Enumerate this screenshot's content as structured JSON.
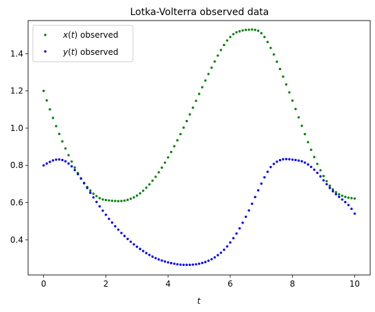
{
  "chart_data": {
    "type": "scatter",
    "title": "Lotka-Volterra observed data",
    "xlabel": "t",
    "ylabel": "",
    "xlim": [
      -0.5,
      10.5
    ],
    "ylim": [
      0.2115,
      1.578
    ],
    "xticks": [
      "0",
      "2",
      "4",
      "6",
      "8",
      "10"
    ],
    "yticks": [
      "0.4",
      "0.6",
      "0.8",
      "1.0",
      "1.2",
      "1.4"
    ],
    "grid": false,
    "legend_position": "upper-left",
    "series": [
      {
        "name": "x(t) observed",
        "name_math": "x",
        "name_arg": "t",
        "name_suffix": " observed",
        "color": "#008000",
        "points": [
          [
            0.0,
            1.2
          ],
          [
            0.1,
            1.149
          ],
          [
            0.2,
            1.101
          ],
          [
            0.3,
            1.055
          ],
          [
            0.4,
            1.011
          ],
          [
            0.5,
            0.969
          ],
          [
            0.6,
            0.929
          ],
          [
            0.7,
            0.891
          ],
          [
            0.8,
            0.855
          ],
          [
            0.9,
            0.821
          ],
          [
            1.0,
            0.789
          ],
          [
            1.1,
            0.759
          ],
          [
            1.2,
            0.731
          ],
          [
            1.3,
            0.706
          ],
          [
            1.4,
            0.684
          ],
          [
            1.5,
            0.665
          ],
          [
            1.6,
            0.648
          ],
          [
            1.7,
            0.635
          ],
          [
            1.8,
            0.624
          ],
          [
            1.9,
            0.617
          ],
          [
            2.0,
            0.614
          ],
          [
            2.1,
            0.612
          ],
          [
            2.2,
            0.61
          ],
          [
            2.3,
            0.609
          ],
          [
            2.4,
            0.608
          ],
          [
            2.5,
            0.609
          ],
          [
            2.6,
            0.611
          ],
          [
            2.7,
            0.615
          ],
          [
            2.8,
            0.621
          ],
          [
            2.9,
            0.628
          ],
          [
            3.0,
            0.638
          ],
          [
            3.1,
            0.65
          ],
          [
            3.2,
            0.664
          ],
          [
            3.3,
            0.68
          ],
          [
            3.4,
            0.698
          ],
          [
            3.5,
            0.718
          ],
          [
            3.6,
            0.739
          ],
          [
            3.7,
            0.763
          ],
          [
            3.8,
            0.788
          ],
          [
            3.9,
            0.815
          ],
          [
            4.0,
            0.843
          ],
          [
            4.1,
            0.872
          ],
          [
            4.2,
            0.903
          ],
          [
            4.3,
            0.935
          ],
          [
            4.4,
            0.968
          ],
          [
            4.5,
            1.003
          ],
          [
            4.6,
            1.038
          ],
          [
            4.7,
            1.074
          ],
          [
            4.8,
            1.11
          ],
          [
            4.9,
            1.147
          ],
          [
            5.0,
            1.184
          ],
          [
            5.1,
            1.22
          ],
          [
            5.2,
            1.256
          ],
          [
            5.3,
            1.291
          ],
          [
            5.4,
            1.325
          ],
          [
            5.5,
            1.358
          ],
          [
            5.6,
            1.39
          ],
          [
            5.7,
            1.42
          ],
          [
            5.8,
            1.447
          ],
          [
            5.9,
            1.471
          ],
          [
            6.0,
            1.49
          ],
          [
            6.1,
            1.505
          ],
          [
            6.2,
            1.515
          ],
          [
            6.3,
            1.52
          ],
          [
            6.4,
            1.525
          ],
          [
            6.5,
            1.528
          ],
          [
            6.6,
            1.529
          ],
          [
            6.7,
            1.53
          ],
          [
            6.8,
            1.528
          ],
          [
            6.9,
            1.523
          ],
          [
            7.0,
            1.51
          ],
          [
            7.1,
            1.49
          ],
          [
            7.2,
            1.463
          ],
          [
            7.3,
            1.431
          ],
          [
            7.4,
            1.396
          ],
          [
            7.5,
            1.357
          ],
          [
            7.6,
            1.318
          ],
          [
            7.7,
            1.277
          ],
          [
            7.8,
            1.235
          ],
          [
            7.9,
            1.192
          ],
          [
            8.0,
            1.148
          ],
          [
            8.1,
            1.103
          ],
          [
            8.2,
            1.058
          ],
          [
            8.3,
            1.013
          ],
          [
            8.4,
            0.968
          ],
          [
            8.5,
            0.925
          ],
          [
            8.6,
            0.884
          ],
          [
            8.7,
            0.845
          ],
          [
            8.8,
            0.808
          ],
          [
            8.9,
            0.774
          ],
          [
            9.0,
            0.743
          ],
          [
            9.1,
            0.715
          ],
          [
            9.2,
            0.691
          ],
          [
            9.3,
            0.671
          ],
          [
            9.4,
            0.656
          ],
          [
            9.5,
            0.645
          ],
          [
            9.6,
            0.637
          ],
          [
            9.7,
            0.631
          ],
          [
            9.8,
            0.627
          ],
          [
            9.9,
            0.624
          ],
          [
            10.0,
            0.622
          ]
        ]
      },
      {
        "name": "y(t) observed",
        "name_math": "y",
        "name_arg": "t",
        "name_suffix": " observed",
        "color": "#0000ff",
        "points": [
          [
            0.0,
            0.8
          ],
          [
            0.1,
            0.81
          ],
          [
            0.2,
            0.819
          ],
          [
            0.3,
            0.827
          ],
          [
            0.4,
            0.831
          ],
          [
            0.5,
            0.832
          ],
          [
            0.6,
            0.829
          ],
          [
            0.7,
            0.822
          ],
          [
            0.8,
            0.81
          ],
          [
            0.9,
            0.795
          ],
          [
            1.0,
            0.775
          ],
          [
            1.1,
            0.753
          ],
          [
            1.2,
            0.729
          ],
          [
            1.3,
            0.704
          ],
          [
            1.4,
            0.679
          ],
          [
            1.5,
            0.653
          ],
          [
            1.6,
            0.628
          ],
          [
            1.7,
            0.604
          ],
          [
            1.8,
            0.58
          ],
          [
            1.9,
            0.557
          ],
          [
            2.0,
            0.535
          ],
          [
            2.1,
            0.513
          ],
          [
            2.2,
            0.493
          ],
          [
            2.3,
            0.473
          ],
          [
            2.4,
            0.455
          ],
          [
            2.5,
            0.437
          ],
          [
            2.6,
            0.421
          ],
          [
            2.7,
            0.405
          ],
          [
            2.8,
            0.39
          ],
          [
            2.9,
            0.376
          ],
          [
            3.0,
            0.363
          ],
          [
            3.1,
            0.351
          ],
          [
            3.2,
            0.34
          ],
          [
            3.3,
            0.329
          ],
          [
            3.4,
            0.319
          ],
          [
            3.5,
            0.31
          ],
          [
            3.6,
            0.302
          ],
          [
            3.7,
            0.295
          ],
          [
            3.8,
            0.289
          ],
          [
            3.9,
            0.284
          ],
          [
            4.0,
            0.279
          ],
          [
            4.1,
            0.275
          ],
          [
            4.2,
            0.272
          ],
          [
            4.3,
            0.269
          ],
          [
            4.4,
            0.267
          ],
          [
            4.5,
            0.266
          ],
          [
            4.6,
            0.266
          ],
          [
            4.7,
            0.266
          ],
          [
            4.8,
            0.267
          ],
          [
            4.9,
            0.269
          ],
          [
            5.0,
            0.272
          ],
          [
            5.1,
            0.276
          ],
          [
            5.2,
            0.281
          ],
          [
            5.3,
            0.288
          ],
          [
            5.4,
            0.296
          ],
          [
            5.5,
            0.306
          ],
          [
            5.6,
            0.318
          ],
          [
            5.7,
            0.331
          ],
          [
            5.8,
            0.347
          ],
          [
            5.9,
            0.365
          ],
          [
            6.0,
            0.386
          ],
          [
            6.1,
            0.409
          ],
          [
            6.2,
            0.434
          ],
          [
            6.3,
            0.462
          ],
          [
            6.4,
            0.492
          ],
          [
            6.5,
            0.524
          ],
          [
            6.6,
            0.558
          ],
          [
            6.7,
            0.594
          ],
          [
            6.8,
            0.63
          ],
          [
            6.9,
            0.666
          ],
          [
            7.0,
            0.702
          ],
          [
            7.1,
            0.736
          ],
          [
            7.2,
            0.766
          ],
          [
            7.3,
            0.791
          ],
          [
            7.4,
            0.808
          ],
          [
            7.5,
            0.82
          ],
          [
            7.6,
            0.828
          ],
          [
            7.7,
            0.833
          ],
          [
            7.8,
            0.834
          ],
          [
            7.9,
            0.833
          ],
          [
            8.0,
            0.831
          ],
          [
            8.1,
            0.829
          ],
          [
            8.2,
            0.826
          ],
          [
            8.3,
            0.822
          ],
          [
            8.4,
            0.815
          ],
          [
            8.5,
            0.805
          ],
          [
            8.6,
            0.792
          ],
          [
            8.7,
            0.777
          ],
          [
            8.8,
            0.76
          ],
          [
            8.9,
            0.741
          ],
          [
            9.0,
            0.72
          ],
          [
            9.1,
            0.699
          ],
          [
            9.2,
            0.679
          ],
          [
            9.3,
            0.661
          ],
          [
            9.4,
            0.645
          ],
          [
            9.5,
            0.631
          ],
          [
            9.6,
            0.617
          ],
          [
            9.7,
            0.603
          ],
          [
            9.8,
            0.587
          ],
          [
            9.9,
            0.567
          ],
          [
            10.0,
            0.541
          ]
        ]
      }
    ]
  }
}
